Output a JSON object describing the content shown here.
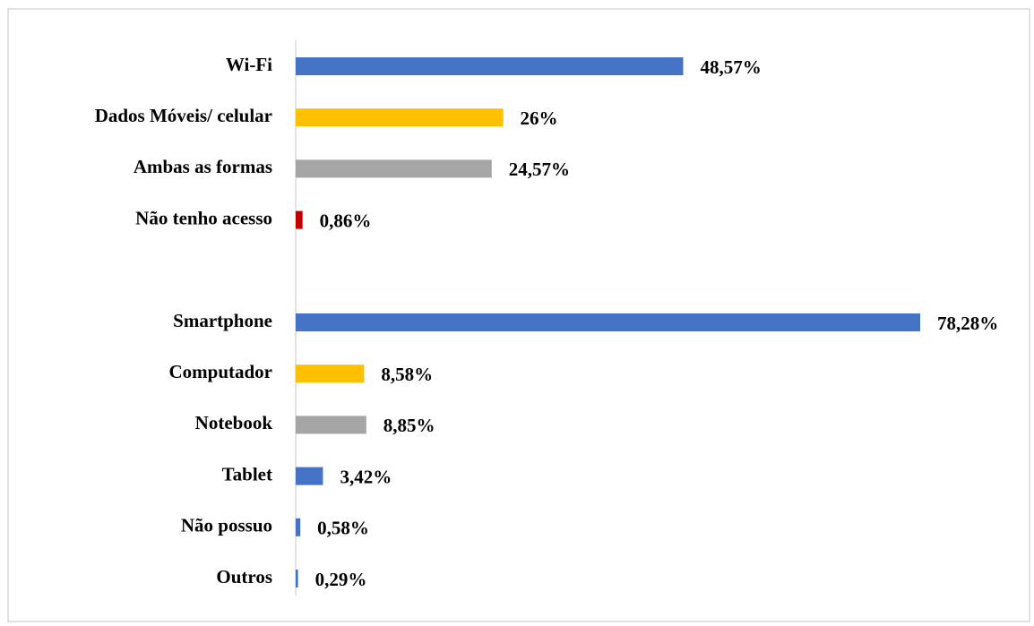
{
  "chart_data": {
    "type": "bar",
    "orientation": "horizontal",
    "categories": [
      "Wi-Fi",
      "Dados Móveis/ celular",
      "Ambas as formas",
      "Não tenho acesso",
      null,
      "Smartphone",
      "Computador",
      "Notebook",
      "Tablet",
      "Não possuo",
      "Outros"
    ],
    "values": [
      48.57,
      26,
      24.57,
      0.86,
      null,
      78.28,
      8.58,
      8.85,
      3.42,
      0.58,
      0.29
    ],
    "value_labels": [
      "48,57%",
      "26%",
      "24,57%",
      "0,86%",
      null,
      "78,28%",
      "8,58%",
      "8,85%",
      "3,42%",
      "0,58%",
      "0,29%"
    ],
    "colors": [
      "#4472c4",
      "#ffc000",
      "#a5a5a5",
      "#c00000",
      null,
      "#4472c4",
      "#ffc000",
      "#a5a5a5",
      "#4472c4",
      "#4472c4",
      "#4472c4"
    ]
  }
}
